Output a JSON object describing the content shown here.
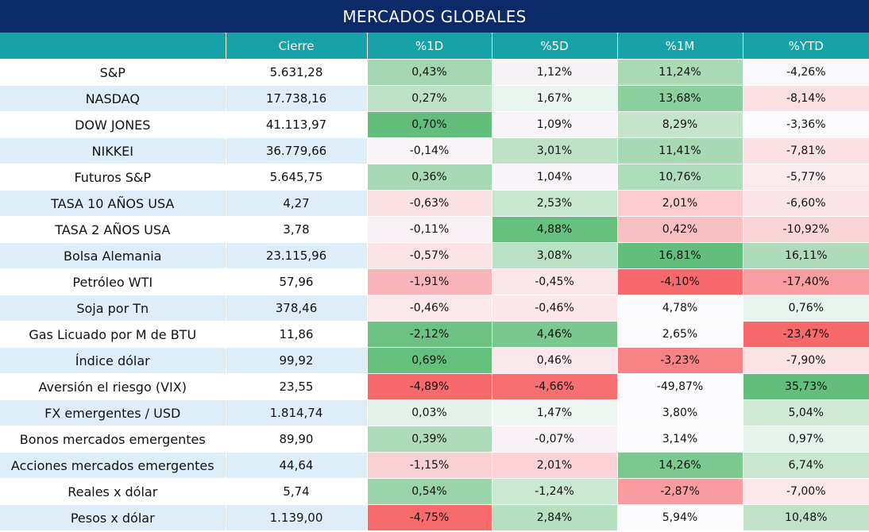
{
  "title": "MERCADOS GLOBALES",
  "headers": [
    "",
    "Cierre",
    "%1D",
    "%5D",
    "%1M",
    "%YTD"
  ],
  "rows": [
    {
      "name": "S&P",
      "cierre": "5.631,28",
      "d1": "0,43%",
      "d5": "1,12%",
      "m1": "11,24%",
      "ytd": "-4,26%"
    },
    {
      "name": "NASDAQ",
      "cierre": "17.738,16",
      "d1": "0,27%",
      "d5": "1,67%",
      "m1": "13,68%",
      "ytd": "-8,14%"
    },
    {
      "name": "DOW JONES",
      "cierre": "41.113,97",
      "d1": "0,70%",
      "d5": "1,09%",
      "m1": "8,29%",
      "ytd": "-3,36%"
    },
    {
      "name": "NIKKEI",
      "cierre": "36.779,66",
      "d1": "-0,14%",
      "d5": "3,01%",
      "m1": "11,41%",
      "ytd": "-7,81%"
    },
    {
      "name": "Futuros S&P",
      "cierre": "5.645,75",
      "d1": "0,36%",
      "d5": "1,04%",
      "m1": "10,76%",
      "ytd": "-5,77%"
    },
    {
      "name": "TASA 10 AÑOS USA",
      "cierre": "4,27",
      "d1": "-0,63%",
      "d5": "2,53%",
      "m1": "2,01%",
      "ytd": "-6,60%"
    },
    {
      "name": "TASA 2 AÑOS USA",
      "cierre": "3,78",
      "d1": "-0,11%",
      "d5": "4,88%",
      "m1": "0,42%",
      "ytd": "-10,92%"
    },
    {
      "name": "Bolsa Alemania",
      "cierre": "23.115,96",
      "d1": "-0,57%",
      "d5": "3,08%",
      "m1": "16,81%",
      "ytd": "16,11%"
    },
    {
      "name": "Petróleo WTI",
      "cierre": "57,96",
      "d1": "-1,91%",
      "d5": "-0,45%",
      "m1": "-4,10%",
      "ytd": "-17,40%"
    },
    {
      "name": "Soja por Tn",
      "cierre": "378,46",
      "d1": "-0,46%",
      "d5": "-0,46%",
      "m1": "4,78%",
      "ytd": "0,76%"
    },
    {
      "name": "Gas Licuado por M de BTU",
      "cierre": "11,86",
      "d1": "-2,12%",
      "d5": "4,46%",
      "m1": "2,65%",
      "ytd": "-23,47%"
    },
    {
      "name": "Índice dólar",
      "cierre": "99,92",
      "d1": "0,69%",
      "d5": "0,46%",
      "m1": "-3,23%",
      "ytd": "-7,90%"
    },
    {
      "name": "Aversión el riesgo (VIX)",
      "cierre": "23,55",
      "d1": "-4,89%",
      "d5": "-4,66%",
      "m1": "-49,87%",
      "ytd": "35,73%"
    },
    {
      "name": "FX emergentes / USD",
      "cierre": "1.814,74",
      "d1": "0,03%",
      "d5": "1,47%",
      "m1": "3,80%",
      "ytd": "5,04%"
    },
    {
      "name": "Bonos mercados emergentes",
      "cierre": "89,90",
      "d1": "0,39%",
      "d5": "-0,07%",
      "m1": "3,14%",
      "ytd": "0,97%"
    },
    {
      "name": "Acciones mercados emergentes",
      "cierre": "44,64",
      "d1": "-1,15%",
      "d5": "2,01%",
      "m1": "14,26%",
      "ytd": "6,74%"
    },
    {
      "name": "Reales x dólar",
      "cierre": "5,74",
      "d1": "0,54%",
      "d5": "-1,24%",
      "m1": "-2,87%",
      "ytd": "-7,00%"
    },
    {
      "name": "Pesos x dólar",
      "cierre": "1.139,00",
      "d1": "-4,75%",
      "d5": "2,84%",
      "m1": "5,94%",
      "ytd": "10,48%"
    }
  ],
  "cell_colors": {
    "d1": [
      "#a3d7b1",
      "#bde3c6",
      "#63be7b",
      "#f8f4f8",
      "#a8d9b5",
      "#fbe1e4",
      "#f9f1f5",
      "#fbe3e6",
      "#f8b6ba",
      "#fae8eb",
      "#6cc183",
      "#65bf7d",
      "#f8696b",
      "#e4f2ea",
      "#aedbba",
      "#f9d0d4",
      "#9ad4aa",
      "#f86b6d"
    ],
    "d5": [
      "#f8f3f7",
      "#eaf5ef",
      "#f8f4f8",
      "#bde2c6",
      "#f9f5f9",
      "#c6e6ce",
      "#66c07e",
      "#bae1c4",
      "#fbe6e9",
      "#fbe6e9",
      "#7ac78f",
      "#fae9ec",
      "#f86f71",
      "#eef7f2",
      "#f8f2f6",
      "#fbd3d6",
      "#cae8d2",
      "#b5dfbf"
    ],
    "m1": [
      "#aadab6",
      "#8ccf9f",
      "#c4e5cc",
      "#a8d9b5",
      "#afdcba",
      "#fbcbcf",
      "#f9c0c4",
      "#63be7b",
      "#f8696b",
      "#fcfcff",
      "#fcfcff",
      "#f88387",
      "#fcfcff",
      "#fcfcff",
      "#fcfcff",
      "#7cc891",
      "#f89c9f",
      "#fcfcff"
    ],
    "ytd": [
      "#f8f7fa",
      "#fbe0e3",
      "#fafafc",
      "#fbe1e4",
      "#faebee",
      "#fbe4e7",
      "#f9d5d8",
      "#aedbba",
      "#f89da0",
      "#e7f4ed",
      "#f8696b",
      "#fbe2e5",
      "#63be7b",
      "#d0ead7",
      "#e6f3ec",
      "#c8e7d0",
      "#fae8eb",
      "#c0e3c8"
    ]
  }
}
